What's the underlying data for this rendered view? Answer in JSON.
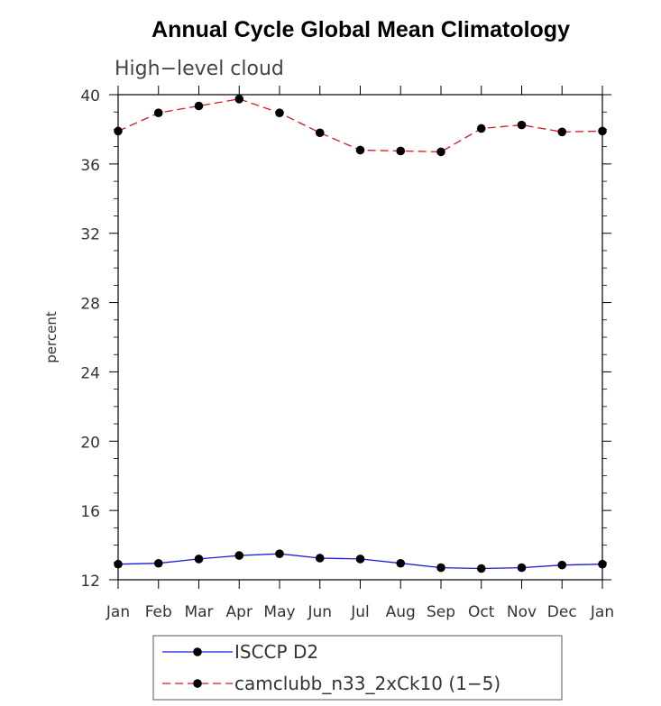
{
  "chart_data": {
    "type": "line",
    "title": "Annual Cycle Global Mean Climatology",
    "subtitle": "High−level cloud",
    "ylabel": "percent",
    "xlabel": "",
    "categories": [
      "Jan",
      "Feb",
      "Mar",
      "Apr",
      "May",
      "Jun",
      "Jul",
      "Aug",
      "Sep",
      "Oct",
      "Nov",
      "Dec",
      "Jan"
    ],
    "ylim": [
      12,
      40
    ],
    "yticks": [
      12,
      16,
      20,
      24,
      28,
      32,
      36,
      40
    ],
    "grid": false,
    "legend_position": "bottom-center",
    "series": [
      {
        "name": "ISCCP D2",
        "color": "#1a1adb",
        "dash": "solid",
        "values": [
          12.9,
          12.95,
          13.2,
          13.4,
          13.5,
          13.25,
          13.2,
          12.95,
          12.7,
          12.65,
          12.7,
          12.85,
          12.9
        ]
      },
      {
        "name": "camclubb_n33_2xCk10 (1−5)",
        "color": "#e0141e",
        "dash": "dashed",
        "values": [
          37.9,
          38.95,
          39.35,
          39.75,
          38.95,
          37.8,
          36.8,
          36.75,
          36.7,
          38.05,
          38.25,
          37.85,
          37.9
        ]
      }
    ]
  }
}
